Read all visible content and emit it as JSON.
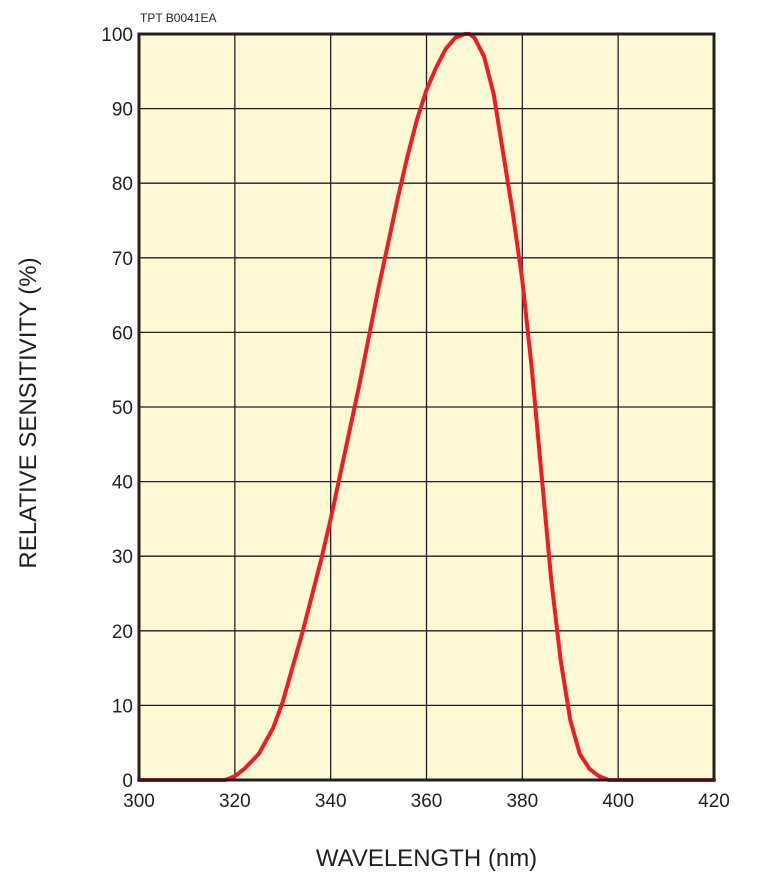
{
  "figure_code": "TPT B0041EA",
  "colors": {
    "plot_background": "#fdf9d4",
    "grid": "#231f20",
    "frame": "#231f20",
    "curve": "#ee1c25"
  },
  "chart_data": {
    "type": "line",
    "title": "",
    "xlabel": "WAVELENGTH (nm)",
    "ylabel": "RELATIVE SENSITIVITY (%)",
    "xlim": [
      300,
      420
    ],
    "ylim": [
      0,
      100
    ],
    "x_ticks": [
      300,
      320,
      340,
      360,
      380,
      400,
      420
    ],
    "y_ticks": [
      0,
      10,
      20,
      30,
      40,
      50,
      60,
      70,
      80,
      90,
      100
    ],
    "grid": true,
    "legend": "none",
    "series": [
      {
        "x": [
          300,
          318,
          320,
          322,
          325,
          328,
          330,
          332,
          334,
          336,
          338,
          340,
          342,
          344,
          346,
          348,
          350,
          352,
          354,
          356,
          358,
          360,
          362,
          364,
          366,
          368,
          369,
          370,
          372,
          374,
          376,
          378,
          380,
          382,
          384,
          386,
          388,
          390,
          392,
          394,
          396,
          398,
          400,
          402,
          420
        ],
        "y": [
          0,
          0,
          0.5,
          1.5,
          3.5,
          7,
          10.5,
          15,
          19.5,
          24.5,
          29.5,
          35,
          41,
          47,
          53,
          59.5,
          66,
          72,
          78,
          83.5,
          88.5,
          92.5,
          95.5,
          98,
          99.5,
          100,
          100,
          99.5,
          97,
          92,
          84,
          76,
          67,
          55,
          41,
          27,
          16,
          8,
          3.5,
          1.5,
          0.5,
          0,
          0,
          0,
          0
        ]
      }
    ]
  }
}
